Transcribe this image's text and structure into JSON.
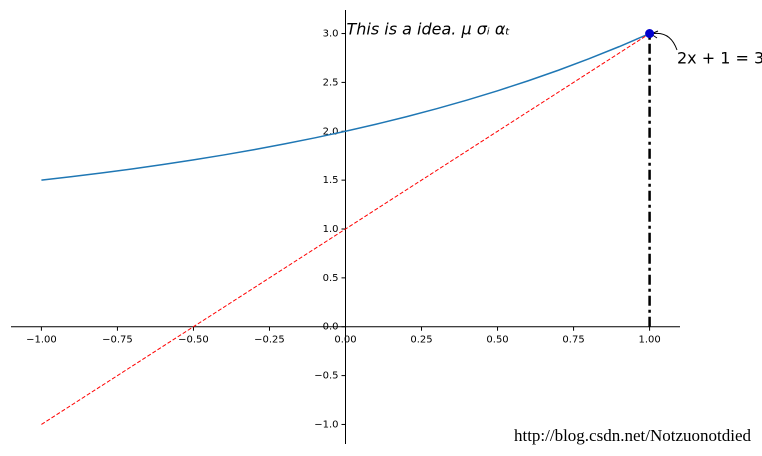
{
  "chart_data": {
    "type": "line",
    "xlim": [
      -1.1,
      1.1
    ],
    "ylim": [
      -1.2,
      3.2
    ],
    "xticks": [
      {
        "value": -1,
        "label": "−1.00"
      },
      {
        "value": -0.75,
        "label": "−0.75"
      },
      {
        "value": -0.5,
        "label": "−0.50"
      },
      {
        "value": -0.25,
        "label": "−0.25"
      },
      {
        "value": 0,
        "label": "0.00"
      },
      {
        "value": 0.25,
        "label": "0.25"
      },
      {
        "value": 0.5,
        "label": "0.50"
      },
      {
        "value": 0.75,
        "label": "0.75"
      },
      {
        "value": 1,
        "label": "1.00"
      }
    ],
    "yticks": [
      {
        "value": -1,
        "label": "−1.0"
      },
      {
        "value": -0.5,
        "label": "−0.5"
      },
      {
        "value": 0,
        "label": "0.0"
      },
      {
        "value": 0.5,
        "label": "0.5"
      },
      {
        "value": 1,
        "label": "1.0"
      },
      {
        "value": 1.5,
        "label": "1.5"
      },
      {
        "value": 2,
        "label": "2.0"
      },
      {
        "value": 2.5,
        "label": "2.5"
      },
      {
        "value": 3,
        "label": "3.0"
      }
    ],
    "series": [
      {
        "color": "#1f77b4",
        "linestyle": "solid",
        "linewidth": 1.5,
        "x": [
          -1,
          -0.9,
          -0.8,
          -0.7,
          -0.6,
          -0.5,
          -0.4,
          -0.3,
          -0.2,
          -0.1,
          0,
          0.1,
          0.2,
          0.3,
          0.4,
          0.5,
          0.6,
          0.7,
          0.8,
          0.9,
          1
        ],
        "values": [
          1.5,
          1.5359,
          1.5743,
          1.6156,
          1.6598,
          1.7071,
          1.7579,
          1.8123,
          1.8706,
          1.933,
          2,
          2.0718,
          2.1487,
          2.2311,
          2.3195,
          2.4142,
          2.5157,
          2.6245,
          2.7411,
          2.8661,
          3
        ]
      },
      {
        "color": "#ff0000",
        "linestyle": "dashed",
        "linewidth": 1,
        "x": [
          -1,
          -0.5,
          0,
          0.5,
          1
        ],
        "values": [
          -1,
          0,
          1,
          2,
          3
        ]
      },
      {
        "color": "#000000",
        "linestyle": "dashdot",
        "linewidth": 2.5,
        "x": [
          1,
          1
        ],
        "values": [
          0,
          3
        ]
      }
    ],
    "scatter": {
      "x": [
        1
      ],
      "y": [
        3
      ],
      "color": "#0000cd"
    },
    "annotations": [
      {
        "text": "This is a idea. μ σᵢ αₜ",
        "color": "#ff0000"
      },
      {
        "text": "2x + 1 = 3",
        "color": "#000000"
      }
    ],
    "watermark": "http://blog.csdn.net/Notzuonotdied"
  }
}
